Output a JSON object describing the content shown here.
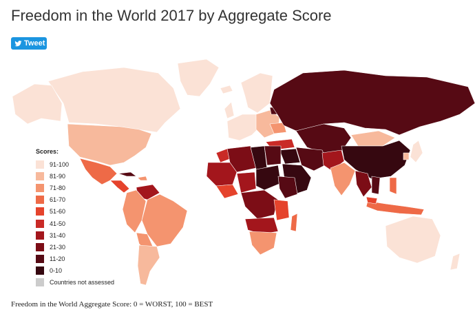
{
  "title": "Freedom in the World 2017 by Aggregate Score",
  "tweet": {
    "label": "Tweet",
    "icon": "twitter-bird-icon"
  },
  "legend": {
    "title": "Scores:",
    "items": [
      {
        "label": "91-100",
        "color": "#fbe2d6"
      },
      {
        "label": "81-90",
        "color": "#f7b99c"
      },
      {
        "label": "71-80",
        "color": "#f4946f"
      },
      {
        "label": "61-70",
        "color": "#ee6a47"
      },
      {
        "label": "51-60",
        "color": "#e5432c"
      },
      {
        "label": "41-50",
        "color": "#c92a26"
      },
      {
        "label": "31-40",
        "color": "#a3161c"
      },
      {
        "label": "21-30",
        "color": "#7c0d16"
      },
      {
        "label": "11-20",
        "color": "#560a14"
      },
      {
        "label": "0-10",
        "color": "#360810"
      },
      {
        "label": "Countries not assessed",
        "color": "#cccccc"
      }
    ]
  },
  "caption": "Freedom in the World Aggregate Score: 0 = WORST, 100 = BEST"
}
